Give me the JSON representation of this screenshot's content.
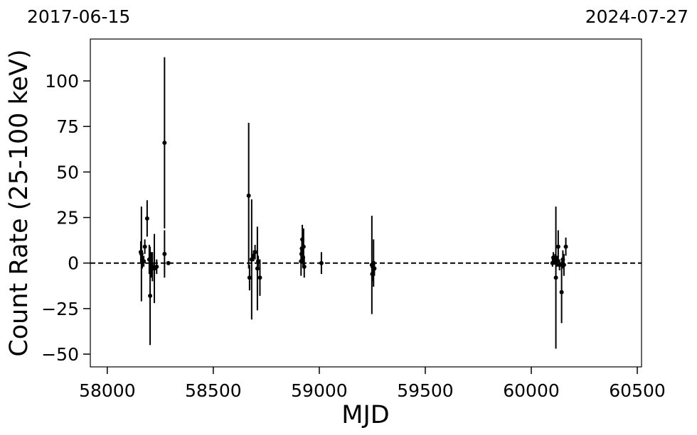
{
  "chart_data": {
    "type": "scatter",
    "xlabel": "MJD",
    "ylabel": "Count Rate (25-100 keV)",
    "top_date_labels": [
      "2017-06-15",
      "2024-07-27"
    ],
    "xlim": [
      57920,
      60520
    ],
    "ylim": [
      -57,
      123
    ],
    "x_ticks": [
      58000,
      58500,
      59000,
      59500,
      60000,
      60500
    ],
    "x_tick_labels": [
      "58000",
      "58500",
      "59000",
      "59500",
      "60000",
      "60500"
    ],
    "y_ticks": [
      -50,
      -25,
      0,
      25,
      50,
      75,
      100
    ],
    "y_tick_labels": [
      "−50",
      "−25",
      "0",
      "25",
      "50",
      "75",
      "100"
    ],
    "reference_line": {
      "y": 0,
      "style": "dashed",
      "color": "#000000"
    },
    "grid": false,
    "marker_color": "#000000",
    "points": [
      {
        "x": 58158,
        "y": 6,
        "err": 6
      },
      {
        "x": 58161,
        "y": 5,
        "err": 26
      },
      {
        "x": 58165,
        "y": 2,
        "err": 5
      },
      {
        "x": 58172,
        "y": 1,
        "err": 3
      },
      {
        "x": 58177,
        "y": 9,
        "err": 4
      },
      {
        "x": 58188,
        "y": 24.5,
        "err": 10
      },
      {
        "x": 58198,
        "y": 2,
        "err": 8
      },
      {
        "x": 58202,
        "y": -18,
        "err": 27
      },
      {
        "x": 58208,
        "y": -1,
        "err": 7
      },
      {
        "x": 58213,
        "y": -2,
        "err": 8
      },
      {
        "x": 58222,
        "y": -3,
        "err": 19
      },
      {
        "x": 58233,
        "y": -2,
        "err": 4
      },
      {
        "x": 58270,
        "y": 66,
        "err": 47
      },
      {
        "x": 58270,
        "y": 5,
        "err": 13
      },
      {
        "x": 58288,
        "y": 0,
        "err": 1
      },
      {
        "x": 58667,
        "y": 37,
        "err": 40
      },
      {
        "x": 58671,
        "y": -8,
        "err": 7
      },
      {
        "x": 58681,
        "y": 2,
        "err": 33
      },
      {
        "x": 58690,
        "y": 4,
        "err": 3
      },
      {
        "x": 58697,
        "y": 6,
        "err": 4
      },
      {
        "x": 58708,
        "y": -3,
        "err": 23
      },
      {
        "x": 58712,
        "y": 1,
        "err": 3
      },
      {
        "x": 58720,
        "y": -8,
        "err": 10
      },
      {
        "x": 58914,
        "y": 1,
        "err": 8
      },
      {
        "x": 58916,
        "y": 5,
        "err": 3
      },
      {
        "x": 58918,
        "y": 8,
        "err": 4
      },
      {
        "x": 58920,
        "y": 13,
        "err": 8
      },
      {
        "x": 58923,
        "y": 3,
        "err": 5
      },
      {
        "x": 58926,
        "y": 9,
        "err": 10
      },
      {
        "x": 58929,
        "y": -2,
        "err": 6
      },
      {
        "x": 59010,
        "y": 0,
        "err": 6
      },
      {
        "x": 59248,
        "y": -1,
        "err": 27
      },
      {
        "x": 59250,
        "y": -6,
        "err": 4
      },
      {
        "x": 59252,
        "y": -2,
        "err": 3
      },
      {
        "x": 59256,
        "y": 0,
        "err": 13
      },
      {
        "x": 59260,
        "y": -3,
        "err": 4
      },
      {
        "x": 60100,
        "y": 0,
        "err": 2
      },
      {
        "x": 60104,
        "y": 3,
        "err": 3
      },
      {
        "x": 60108,
        "y": 2,
        "err": 2
      },
      {
        "x": 60112,
        "y": 2,
        "err": 3
      },
      {
        "x": 60116,
        "y": -8,
        "err": 39
      },
      {
        "x": 60122,
        "y": 1,
        "err": 3
      },
      {
        "x": 60127,
        "y": 9,
        "err": 9
      },
      {
        "x": 60133,
        "y": -1,
        "err": 3
      },
      {
        "x": 60143,
        "y": -16,
        "err": 17
      },
      {
        "x": 60149,
        "y": 2,
        "err": 5
      },
      {
        "x": 60154,
        "y": -1,
        "err": 6
      },
      {
        "x": 60163,
        "y": 9,
        "err": 5
      }
    ]
  }
}
